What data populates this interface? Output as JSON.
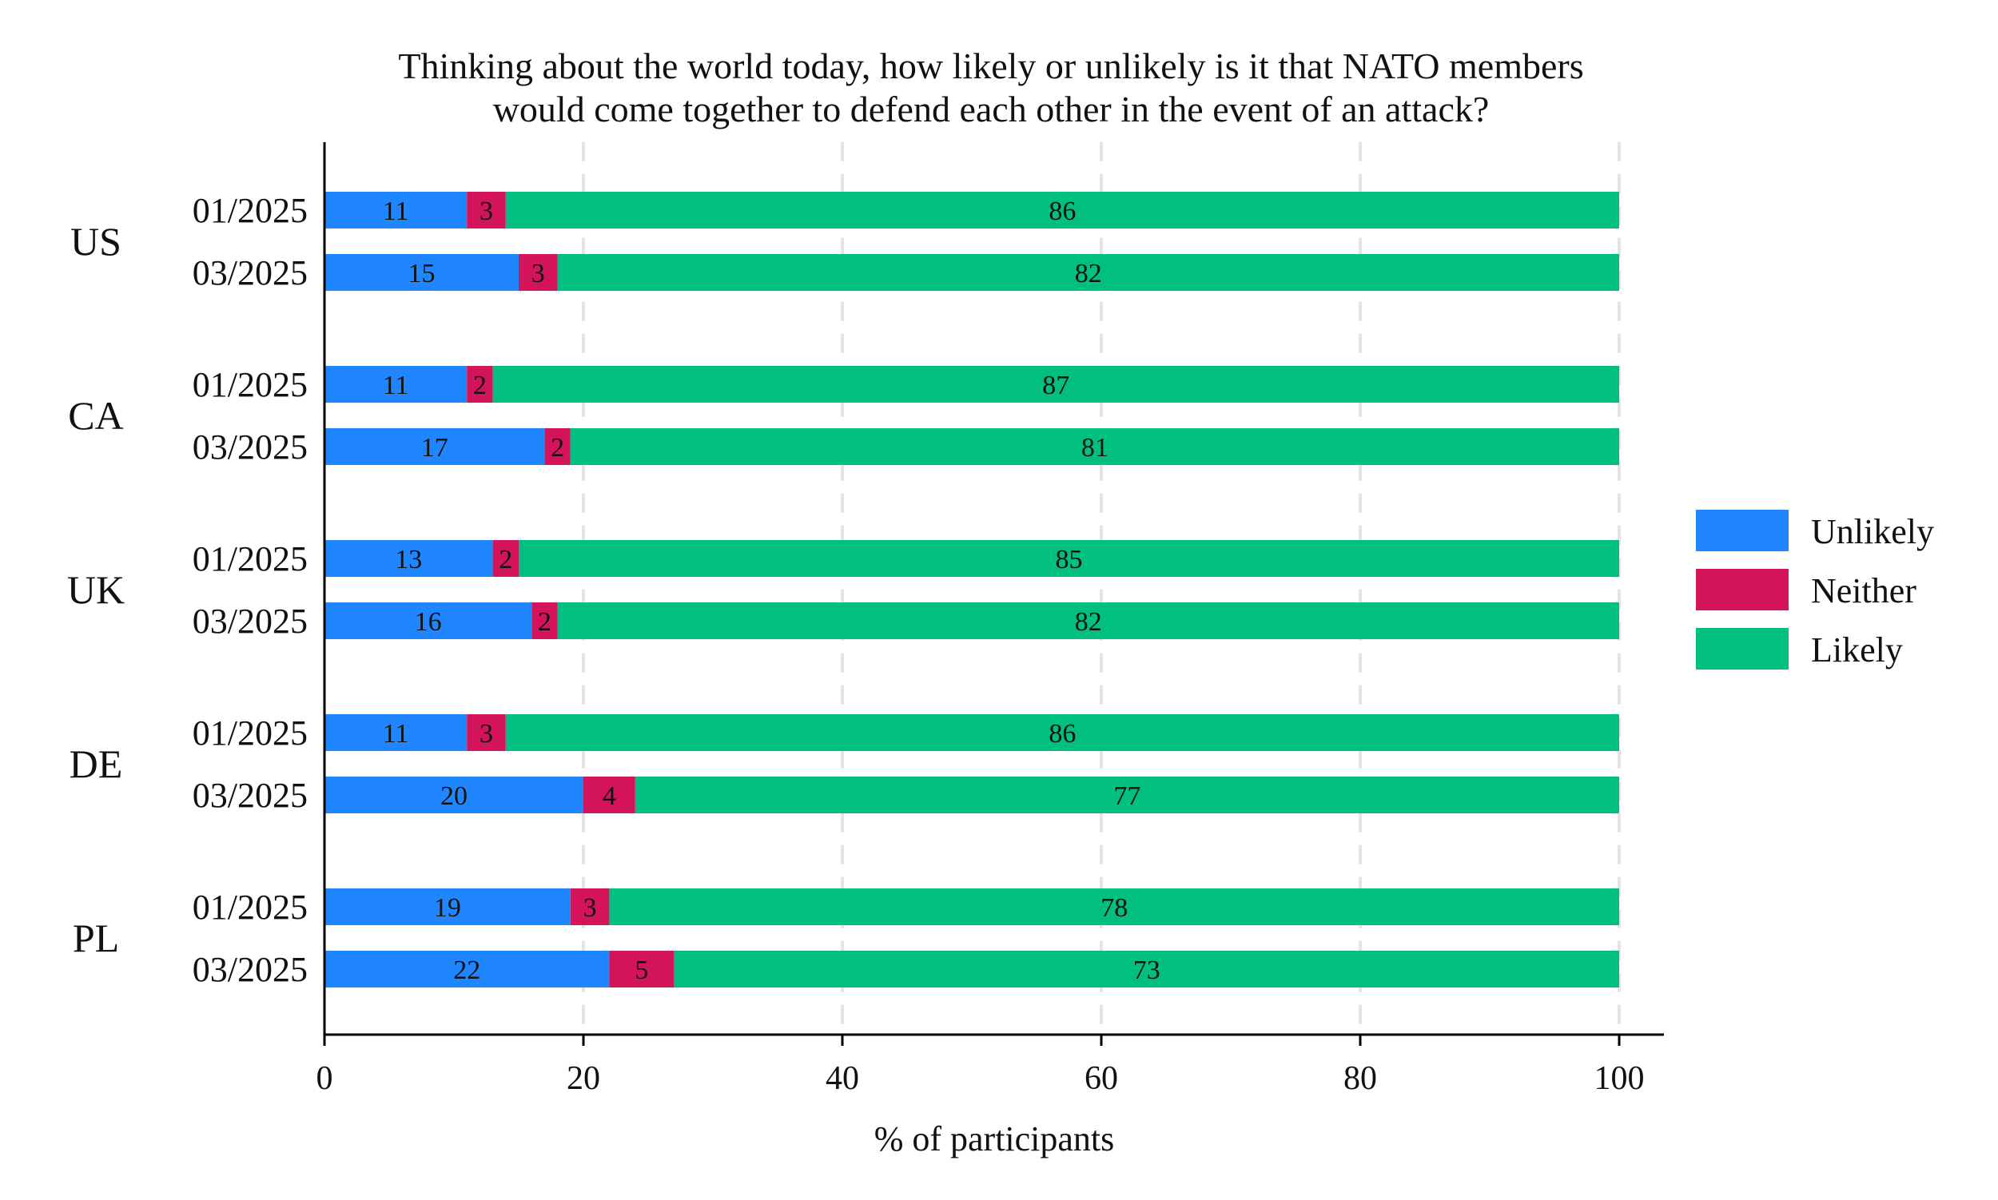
{
  "chart_data": {
    "type": "bar",
    "orientation": "horizontal",
    "stacked": true,
    "title": "Thinking about the world today, how likely or unlikely is it that NATO members would come together to defend each other in the event of an attack?",
    "title_lines": [
      "Thinking about the world today, how likely or unlikely is it that NATO members",
      "would come together to defend each other in the event of an attack?"
    ],
    "xlabel": "% of participants",
    "ylabel": "",
    "xlim": [
      0,
      100
    ],
    "xticks": [
      0,
      20,
      40,
      60,
      80,
      100
    ],
    "grid": true,
    "legend_position": "right",
    "series": [
      {
        "name": "Unlikely",
        "color": "#1f86ff"
      },
      {
        "name": "Neither",
        "color": "#d4145a"
      },
      {
        "name": "Likely",
        "color": "#00bf7f"
      }
    ],
    "groups": [
      {
        "country": "US",
        "rows": [
          {
            "date": "01/2025",
            "values": [
              11,
              3,
              86
            ]
          },
          {
            "date": "03/2025",
            "values": [
              15,
              3,
              82
            ]
          }
        ]
      },
      {
        "country": "CA",
        "rows": [
          {
            "date": "01/2025",
            "values": [
              11,
              2,
              87
            ]
          },
          {
            "date": "03/2025",
            "values": [
              17,
              2,
              81
            ]
          }
        ]
      },
      {
        "country": "UK",
        "rows": [
          {
            "date": "01/2025",
            "values": [
              13,
              2,
              85
            ]
          },
          {
            "date": "03/2025",
            "values": [
              16,
              2,
              82
            ]
          }
        ]
      },
      {
        "country": "DE",
        "rows": [
          {
            "date": "01/2025",
            "values": [
              11,
              3,
              86
            ]
          },
          {
            "date": "03/2025",
            "values": [
              20,
              4,
              77
            ]
          }
        ]
      },
      {
        "country": "PL",
        "rows": [
          {
            "date": "01/2025",
            "values": [
              19,
              3,
              78
            ]
          },
          {
            "date": "03/2025",
            "values": [
              22,
              5,
              73
            ]
          }
        ]
      }
    ]
  }
}
